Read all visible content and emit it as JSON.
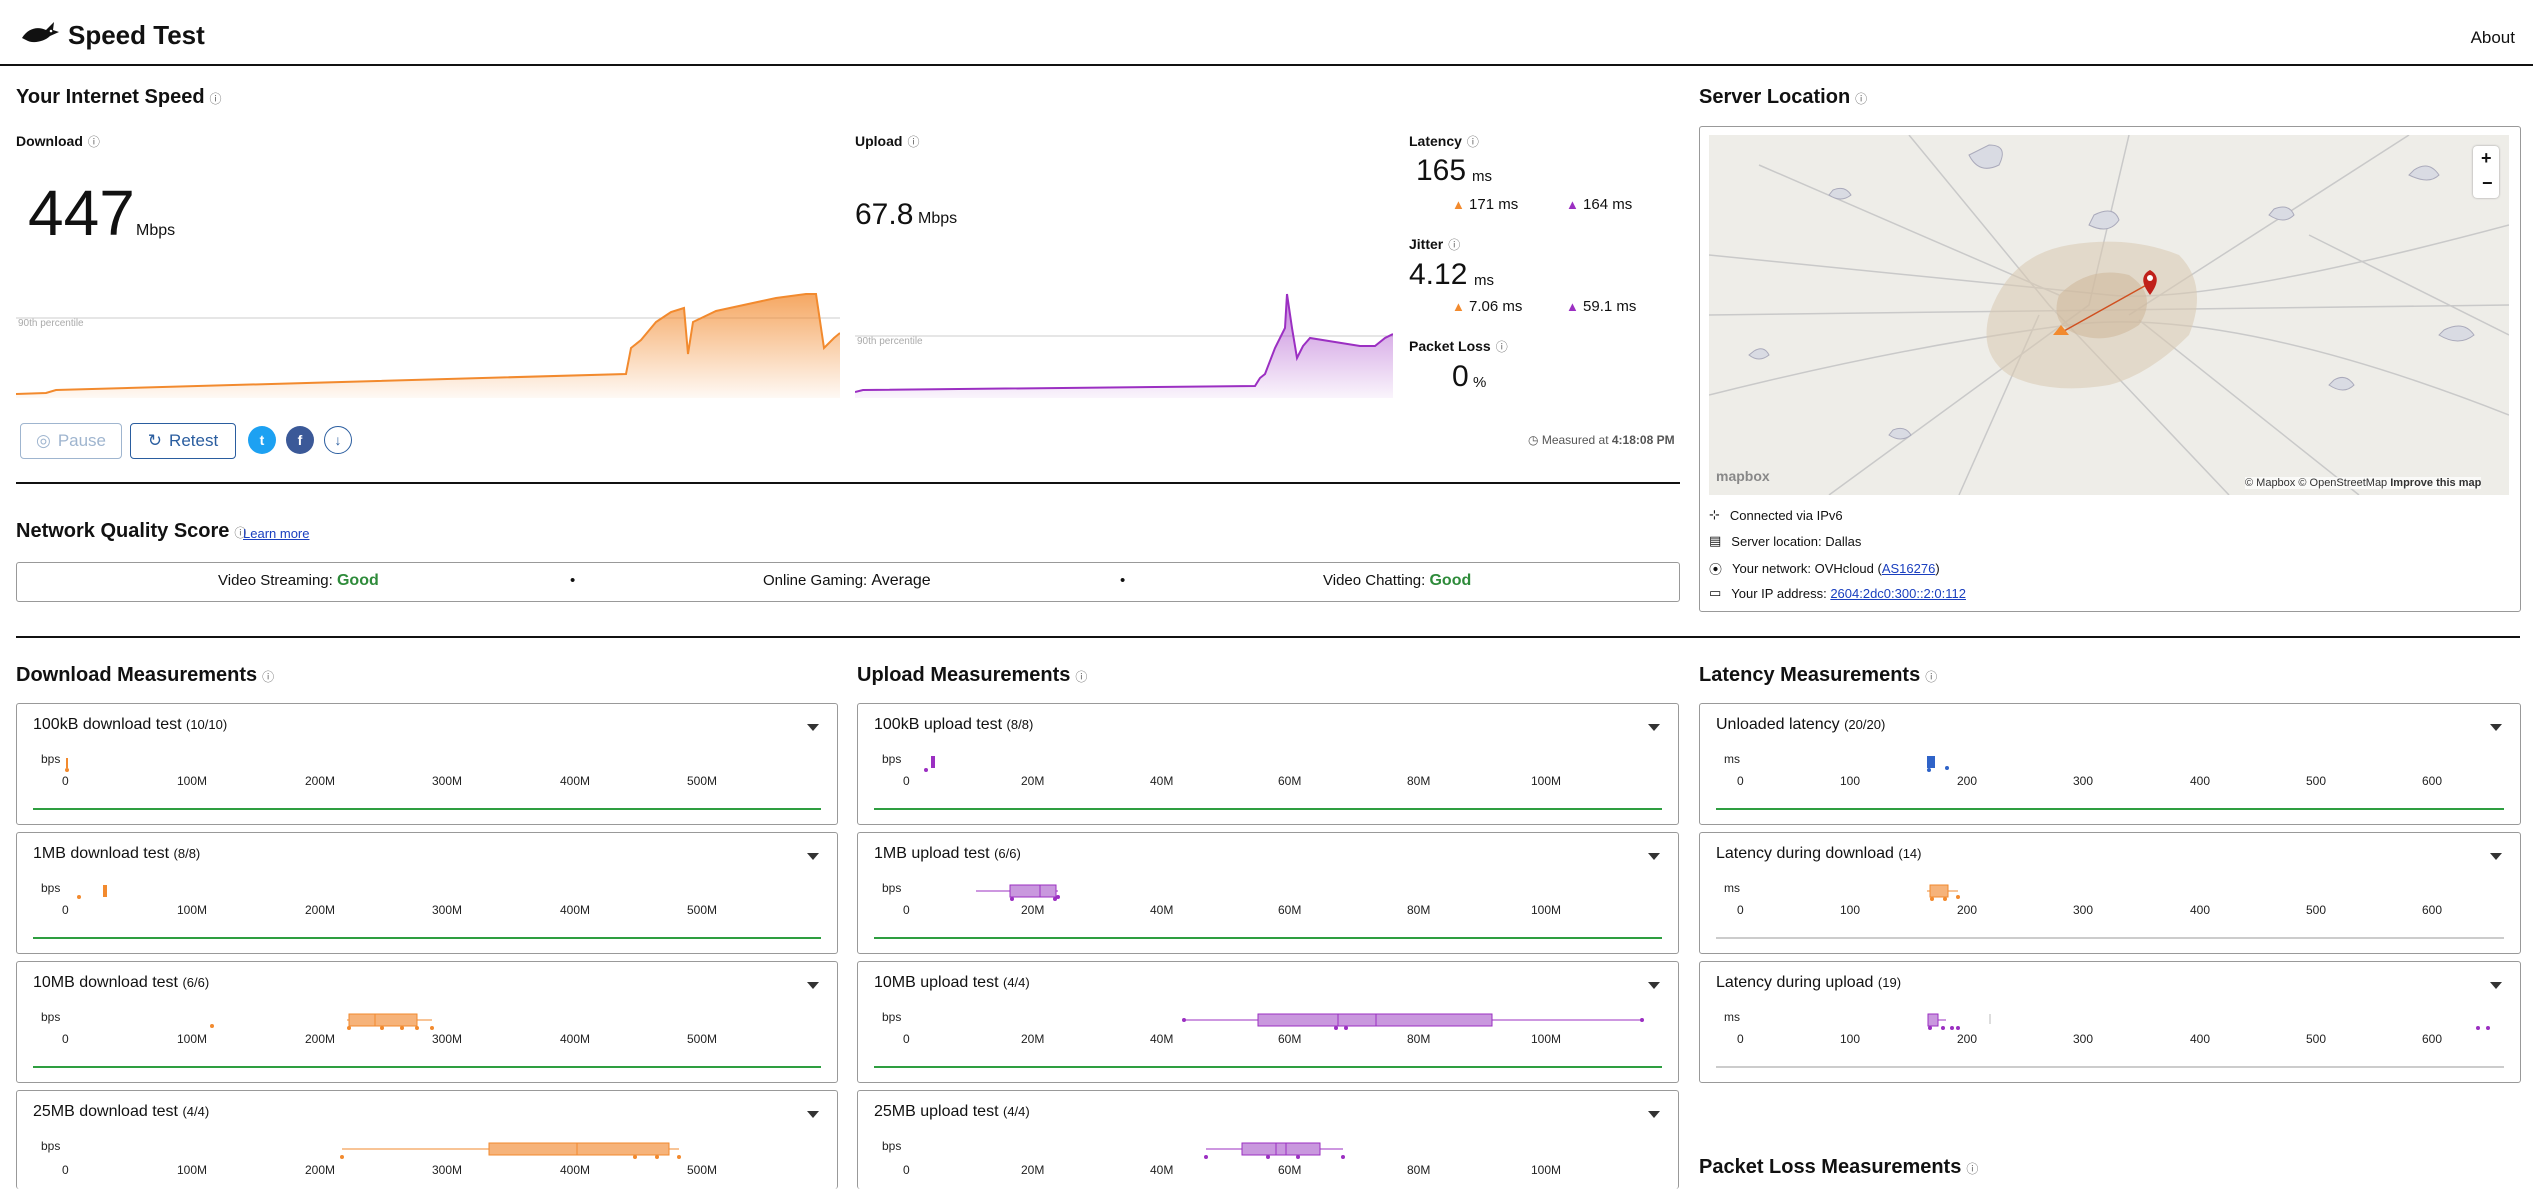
{
  "header": {
    "title": "Speed Test",
    "about": "About"
  },
  "speed": {
    "title": "Your Internet Speed",
    "download": {
      "label": "Download",
      "value": "447",
      "unit": "Mbps",
      "percentile_label": "90th percentile"
    },
    "upload": {
      "label": "Upload",
      "value": "67.8",
      "unit": "Mbps",
      "percentile_label": "90th percentile"
    },
    "latency": {
      "label": "Latency",
      "value": "165",
      "unit": "ms",
      "down": "171",
      "up": "164",
      "sub_unit": "ms"
    },
    "jitter": {
      "label": "Jitter",
      "value": "4.12",
      "unit": "ms",
      "down": "7.06",
      "up": "59.1",
      "sub_unit": "ms"
    },
    "packet_loss": {
      "label": "Packet Loss",
      "value": "0",
      "unit": "%"
    },
    "measured_prefix": "Measured at",
    "measured_time": "4:18:08 PM",
    "pause": "Pause",
    "retest": "Retest"
  },
  "server": {
    "title": "Server Location",
    "map_credits": {
      "mapbox": "© Mapbox",
      "osm": "© OpenStreetMap",
      "improve": "Improve this map",
      "logo": "mapbox"
    },
    "zoom_in": "+",
    "zoom_out": "−",
    "connected": "Connected via IPv6",
    "location": "Server location: Dallas",
    "network_prefix": "Your network: OVHcloud (",
    "network_link": "AS16276",
    "network_suffix": ")",
    "ip_prefix": "Your IP address: ",
    "ip": "2604:2dc0:300::2:0:112"
  },
  "quality": {
    "title": "Network Quality Score",
    "learn_more": "Learn more",
    "streaming_label": "Video Streaming:",
    "streaming_value": "Good",
    "gaming_label": "Online Gaming:",
    "gaming_value": "Average",
    "chatting_label": "Video Chatting:",
    "chatting_value": "Good",
    "separator": "•"
  },
  "measurements": {
    "download_title": "Download Measurements",
    "upload_title": "Upload Measurements",
    "latency_title": "Latency Measurements",
    "packet_loss_title": "Packet Loss Measurements",
    "download_ticks": [
      "0",
      "100M",
      "200M",
      "300M",
      "400M",
      "500M"
    ],
    "upload_ticks": [
      "0",
      "20M",
      "40M",
      "60M",
      "80M",
      "100M"
    ],
    "latency_ticks": [
      "0",
      "100",
      "200",
      "300",
      "400",
      "500",
      "600"
    ],
    "download": [
      {
        "name": "100kB download test",
        "count": "(10/10)",
        "unit": "bps"
      },
      {
        "name": "1MB download test",
        "count": "(8/8)",
        "unit": "bps"
      },
      {
        "name": "10MB download test",
        "count": "(6/6)",
        "unit": "bps"
      },
      {
        "name": "25MB download test",
        "count": "(4/4)",
        "unit": "bps"
      }
    ],
    "upload": [
      {
        "name": "100kB upload test",
        "count": "(8/8)",
        "unit": "bps"
      },
      {
        "name": "1MB upload test",
        "count": "(6/6)",
        "unit": "bps"
      },
      {
        "name": "10MB upload test",
        "count": "(4/4)",
        "unit": "bps"
      },
      {
        "name": "25MB upload test",
        "count": "(4/4)",
        "unit": "bps"
      }
    ],
    "latency": [
      {
        "name": "Unloaded latency",
        "count": "(20/20)",
        "unit": "ms"
      },
      {
        "name": "Latency during download",
        "count": "(14)",
        "unit": "ms"
      },
      {
        "name": "Latency during upload",
        "count": "(19)",
        "unit": "ms"
      }
    ]
  },
  "colors": {
    "download": "#f28a2e",
    "upload": "#9b2fc2",
    "latency": "#2f63c8",
    "good": "#2e8b3a",
    "link": "#1a3fbf"
  }
}
